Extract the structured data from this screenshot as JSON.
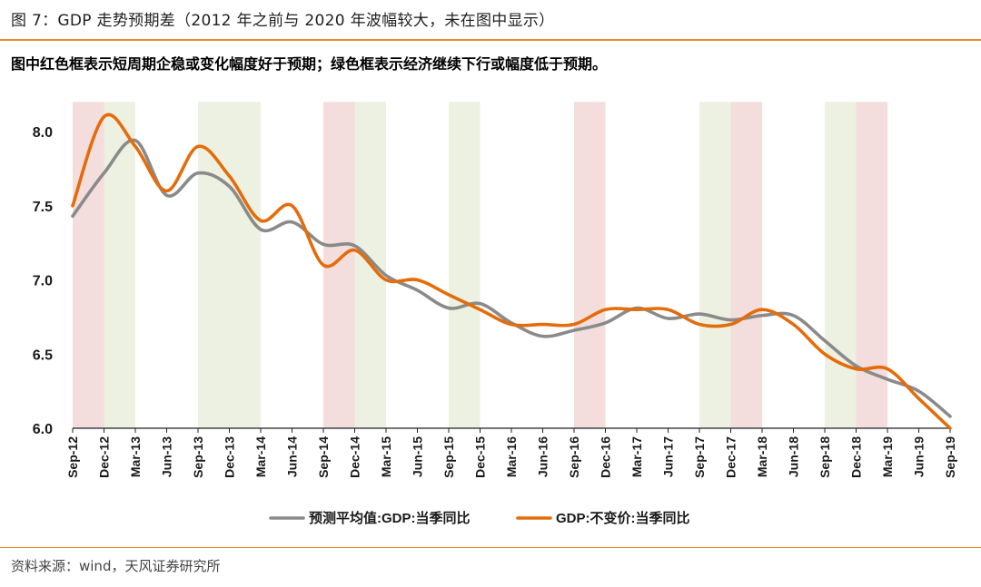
{
  "header": {
    "title": "图 7：GDP 走势预期差（2012 年之前与 2020 年波幅较大，未在图中显示）",
    "subtitle": "图中红色框表示短周期企稳或变化幅度好于预期；绿色框表示经济继续下行或幅度低于预期。"
  },
  "footer": {
    "source": "资料来源：wind，天风证券研究所"
  },
  "colors": {
    "accent": "#e98b2b",
    "series_expected": "#8a8a8a",
    "series_actual": "#e46c0a",
    "band_red": "#f3dddd",
    "band_green": "#ecf1e1"
  },
  "chart_data": {
    "type": "line",
    "title": "GDP 走势预期差",
    "xlabel": "",
    "ylabel": "",
    "ylim": [
      6.0,
      8.2
    ],
    "yticks": [
      "8.0",
      "7.5",
      "7.0",
      "6.5",
      "6.0"
    ],
    "categories": [
      "Sep-12",
      "Dec-12",
      "Mar-13",
      "Jun-13",
      "Sep-13",
      "Dec-13",
      "Mar-14",
      "Jun-14",
      "Sep-14",
      "Dec-14",
      "Mar-15",
      "Jun-15",
      "Sep-15",
      "Dec-15",
      "Mar-16",
      "Jun-16",
      "Sep-16",
      "Dec-16",
      "Mar-17",
      "Jun-17",
      "Sep-17",
      "Dec-17",
      "Mar-18",
      "Jun-18",
      "Sep-18",
      "Dec-18",
      "Mar-19",
      "Jun-19",
      "Sep-19"
    ],
    "legend_position": "bottom-center",
    "series": [
      {
        "name": "预测平均值:GDP:当季同比",
        "values": [
          7.43,
          7.72,
          7.94,
          7.57,
          7.72,
          7.63,
          7.34,
          7.39,
          7.24,
          7.23,
          7.03,
          6.93,
          6.81,
          6.84,
          6.71,
          6.62,
          6.66,
          6.71,
          6.81,
          6.74,
          6.77,
          6.73,
          6.76,
          6.76,
          6.59,
          6.42,
          6.33,
          6.25,
          6.08
        ]
      },
      {
        "name": "GDP:不变价:当季同比",
        "values": [
          7.5,
          8.1,
          7.9,
          7.6,
          7.9,
          7.7,
          7.4,
          7.5,
          7.1,
          7.2,
          7.0,
          7.0,
          6.9,
          6.8,
          6.7,
          6.7,
          6.7,
          6.8,
          6.8,
          6.8,
          6.7,
          6.7,
          6.8,
          6.7,
          6.5,
          6.4,
          6.4,
          6.2,
          6.0
        ]
      }
    ],
    "highlight_bands": [
      {
        "from": "Sep-12",
        "to": "Dec-12",
        "color": "red"
      },
      {
        "from": "Dec-12",
        "to": "Mar-13",
        "color": "green"
      },
      {
        "from": "Sep-13",
        "to": "Mar-14",
        "color": "green"
      },
      {
        "from": "Sep-14",
        "to": "Dec-14",
        "color": "red"
      },
      {
        "from": "Dec-14",
        "to": "Mar-15",
        "color": "green"
      },
      {
        "from": "Sep-15",
        "to": "Dec-15",
        "color": "green"
      },
      {
        "from": "Sep-16",
        "to": "Dec-16",
        "color": "red"
      },
      {
        "from": "Sep-17",
        "to": "Dec-17",
        "color": "green"
      },
      {
        "from": "Dec-17",
        "to": "Mar-18",
        "color": "red"
      },
      {
        "from": "Sep-18",
        "to": "Dec-18",
        "color": "green"
      },
      {
        "from": "Dec-18",
        "to": "Mar-19",
        "color": "red"
      }
    ]
  }
}
